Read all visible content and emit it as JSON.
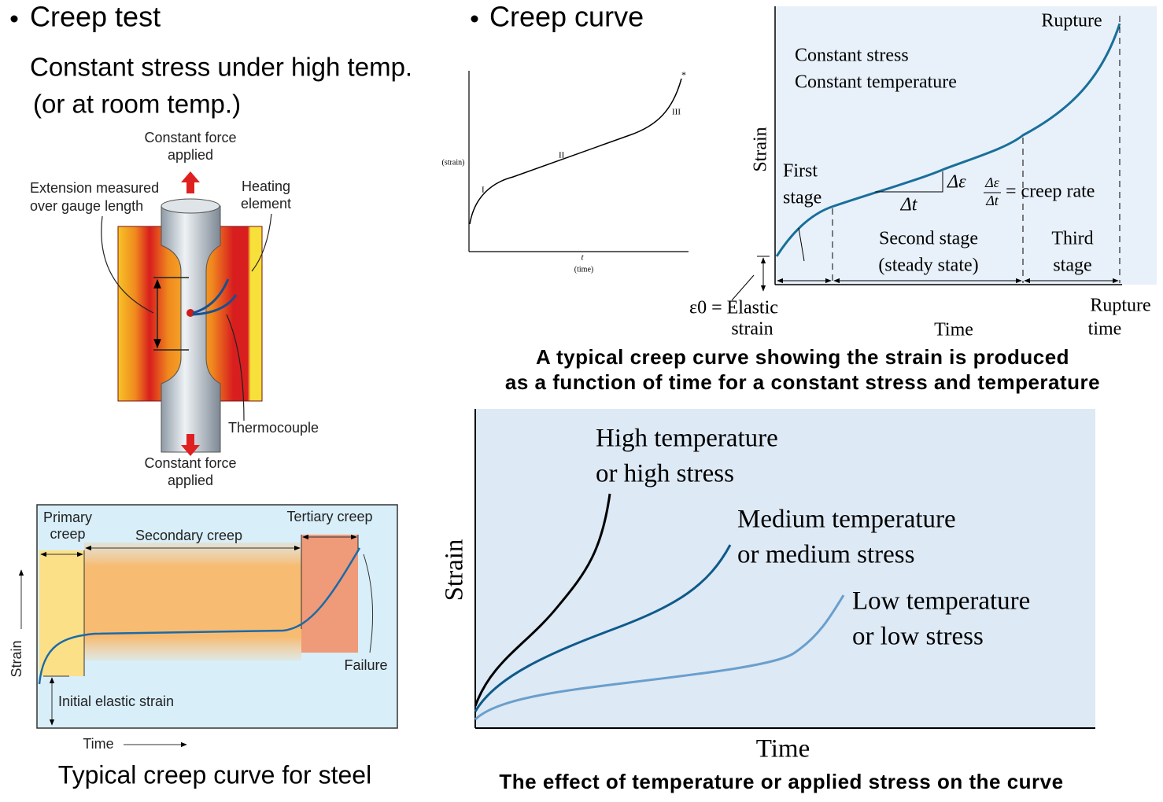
{
  "creep_test": {
    "title": "Creep test",
    "lines": [
      "Constant stress under high temp.",
      "(or at room temp.)"
    ]
  },
  "apparatus": {
    "force_top": [
      "Constant force",
      "applied"
    ],
    "extension": [
      "Extension measured",
      "over gauge length"
    ],
    "heating": [
      "Heating",
      "element"
    ],
    "thermocouple": "Thermocouple",
    "force_bottom": [
      "Constant force",
      "applied"
    ]
  },
  "creep_curve": {
    "title": "Creep curve"
  },
  "small_curve": {
    "y_label": "(strain)",
    "x_label": [
      "t",
      "(time)"
    ],
    "stages": [
      "I",
      "II",
      "III"
    ],
    "end": "*"
  },
  "typical_curve": {
    "rupture": "Rupture",
    "conditions": [
      "Constant stress",
      "Constant temperature"
    ],
    "y_label": "Strain",
    "first_stage": [
      "First",
      "stage"
    ],
    "delta_eps": "Δε",
    "delta_t": "Δt",
    "rate_fraction": [
      "Δε",
      "Δt"
    ],
    "rate_label": "= creep rate",
    "second_stage": [
      "Second stage",
      "(steady state)"
    ],
    "third_stage": [
      "Third",
      "stage"
    ],
    "elastic": [
      "ε0 = Elastic",
      "strain"
    ],
    "x_label": "Time",
    "rupture_time": [
      "Rupture",
      "time"
    ],
    "caption": [
      "A typical creep curve showing the strain is produced",
      "as a function of time for a constant stress and temperature"
    ]
  },
  "steel_curve": {
    "primary": [
      "Primary",
      "creep"
    ],
    "secondary": "Secondary creep",
    "tertiary": "Tertiary creep",
    "y_label": "Strain",
    "failure": "Failure",
    "elastic": "Initial elastic strain",
    "x_label": "Time",
    "caption": "Typical creep curve for steel"
  },
  "effect_curve": {
    "high": [
      "High temperature",
      "or high stress"
    ],
    "medium": [
      "Medium temperature",
      "or medium stress"
    ],
    "low": [
      "Low temperature",
      "or low stress"
    ],
    "y_label": "Strain",
    "x_label": "Time",
    "caption": "The effect of temperature or applied stress on the curve"
  }
}
